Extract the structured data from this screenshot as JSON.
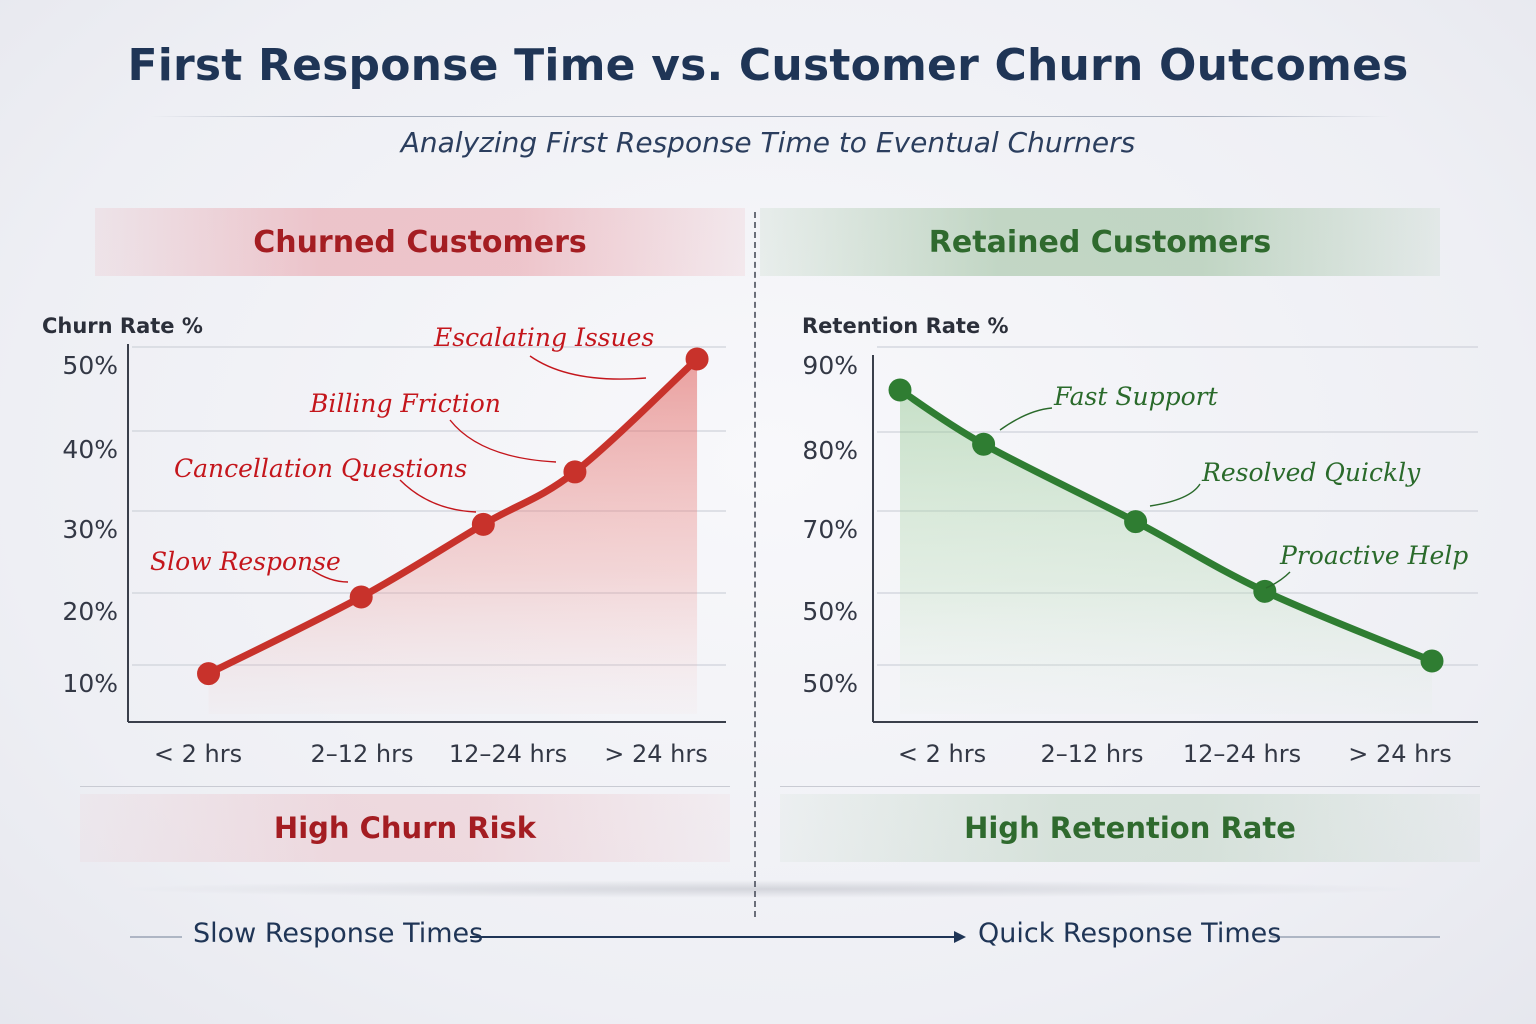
{
  "title": "First Response Time vs. Customer Churn Outcomes",
  "subtitle": "Analyzing First Response Time to Eventual Churners",
  "colors": {
    "churn": "#c8322b",
    "retain": "#2f7d32",
    "navy": "#1f3556"
  },
  "chart_data": [
    {
      "type": "area",
      "panel_title": "Churned Customers",
      "ylabel": "Churn Rate %",
      "footer": "High Churn Risk",
      "y_ticks": [
        "50%",
        "40%",
        "30%",
        "20%",
        "10%"
      ],
      "x_ticks": [
        "< 2 hrs",
        "2–12 hrs",
        "12–24 hrs",
        "> 24 hrs"
      ],
      "ylim": [
        5,
        50
      ],
      "points": [
        {
          "x": 0.2,
          "y": 11
        },
        {
          "x": 1.2,
          "y": 20.5
        },
        {
          "x": 2.0,
          "y": 29.5
        },
        {
          "x": 2.6,
          "y": 36
        },
        {
          "x": 3.4,
          "y": 50
        }
      ],
      "annotations": [
        {
          "text": "Slow Response",
          "point": 1
        },
        {
          "text": "Cancellation Questions",
          "point": 2
        },
        {
          "text": "Billing Friction",
          "point": 3
        },
        {
          "text": "Escalating Issues",
          "point": 4
        }
      ]
    },
    {
      "type": "area",
      "panel_title": "Retained Customers",
      "ylabel": "Retention Rate %",
      "footer": "High Retention Rate",
      "y_ticks": [
        "90%",
        "80%",
        "70%",
        "50%",
        "50%"
      ],
      "x_ticks": [
        "< 2 hrs",
        "2–12 hrs",
        "12–24 hrs",
        "> 24 hrs"
      ],
      "points": [
        {
          "x": 0.0,
          "y": 86
        },
        {
          "x": 0.55,
          "y": 79
        },
        {
          "x": 1.55,
          "y": 69
        },
        {
          "x": 2.4,
          "y": 60
        },
        {
          "x": 3.5,
          "y": 51
        }
      ],
      "annotations": [
        {
          "text": "Fast Support",
          "point": 1
        },
        {
          "text": "Resolved Quickly",
          "point": 2
        },
        {
          "text": "Proactive Help",
          "point": 3
        }
      ]
    }
  ],
  "flow": {
    "left": "Slow Response Times",
    "right": "Quick Response Times"
  }
}
